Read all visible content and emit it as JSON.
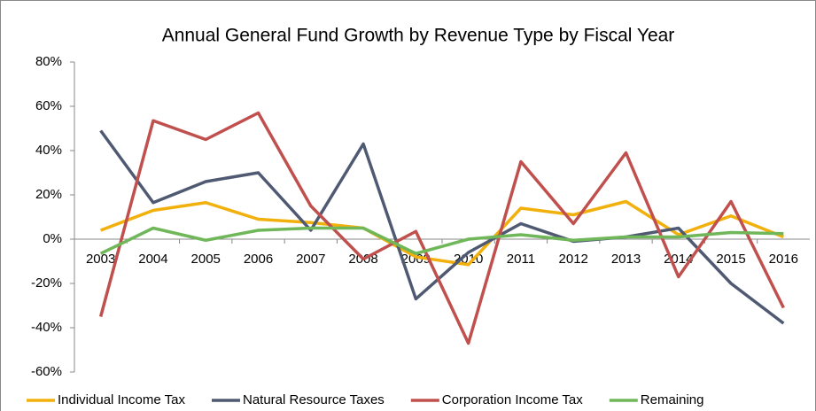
{
  "chart_data": {
    "type": "line",
    "title": "Annual General Fund Growth by Revenue Type by Fiscal Year",
    "categories": [
      "2003",
      "2004",
      "2005",
      "2006",
      "2007",
      "2008",
      "2009",
      "2010",
      "2011",
      "2012",
      "2013",
      "2014",
      "2015",
      "2016"
    ],
    "series": [
      {
        "name": "Individual Income Tax",
        "color": "#f2b00c",
        "values": [
          4,
          13,
          16.5,
          9,
          7.5,
          5,
          -8,
          -11.5,
          14,
          11,
          17,
          2,
          10.5,
          1
        ]
      },
      {
        "name": "Natural Resource Taxes",
        "color": "#4f5a72",
        "values": [
          49,
          16.5,
          26,
          30,
          4,
          43,
          -27,
          -6,
          7,
          -1,
          1,
          5,
          -20,
          -38
        ]
      },
      {
        "name": "Corporation Income Tax",
        "color": "#c0504d",
        "values": [
          -35,
          53.5,
          45,
          57,
          15,
          -9,
          3.5,
          -47,
          35,
          7,
          39,
          -17,
          17,
          -31
        ]
      },
      {
        "name": "Remaining",
        "color": "#70b75a",
        "values": [
          -6.5,
          5,
          -0.5,
          4,
          5,
          5,
          -6.5,
          0,
          2,
          -0.5,
          1,
          1,
          3,
          2.5
        ]
      }
    ],
    "ylim": [
      -60,
      80
    ],
    "yticks": [
      {
        "value": -60,
        "label": "-60%"
      },
      {
        "value": -40,
        "label": "-40%"
      },
      {
        "value": -20,
        "label": "-20%"
      },
      {
        "value": 0,
        "label": "0%"
      },
      {
        "value": 20,
        "label": "20%"
      },
      {
        "value": 40,
        "label": "40%"
      },
      {
        "value": 60,
        "label": "60%"
      },
      {
        "value": 80,
        "label": "80%"
      }
    ],
    "grid": false,
    "legend": "bottom"
  }
}
